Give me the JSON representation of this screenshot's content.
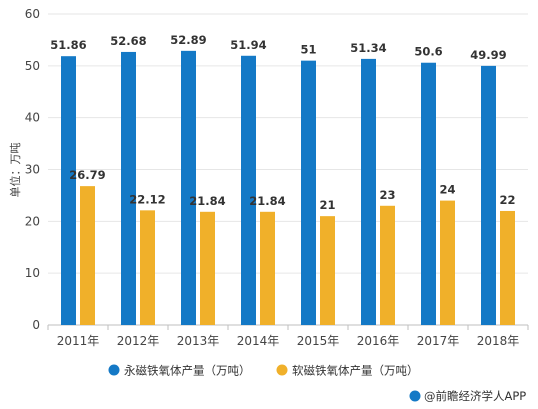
{
  "chart_data": {
    "type": "bar",
    "categories": [
      "2011年",
      "2012年",
      "2013年",
      "2014年",
      "2015年",
      "2016年",
      "2017年",
      "2018年"
    ],
    "series": [
      {
        "name": "永磁铁氧体产量（万吨）",
        "values": [
          51.86,
          52.68,
          52.89,
          51.94,
          51,
          51.34,
          50.6,
          49.99
        ],
        "labels": [
          "51.86",
          "52.68",
          "52.89",
          "51.94",
          "51",
          "51.34",
          "50.6",
          "49.99"
        ],
        "color": "#1479c6"
      },
      {
        "name": "软磁铁氧体产量（万吨）",
        "values": [
          26.79,
          22.12,
          21.84,
          21.84,
          21,
          23,
          24,
          22
        ],
        "labels": [
          "26.79",
          "22.12",
          "21.84",
          "21.84",
          "21",
          "23",
          "24",
          "22"
        ],
        "color": "#f0b02a"
      }
    ],
    "ylabel": "单位：万吨",
    "xlabel": "",
    "ylim": [
      0,
      60
    ],
    "yticks": [
      0,
      10,
      20,
      30,
      40,
      50,
      60
    ],
    "grid": true,
    "legend": "bottom"
  },
  "source_text": "@前瞻经济学人APP",
  "colors": {
    "axis": "#bfbfbf",
    "grid": "#e6e6e6",
    "source_icon": "#1479c6"
  }
}
